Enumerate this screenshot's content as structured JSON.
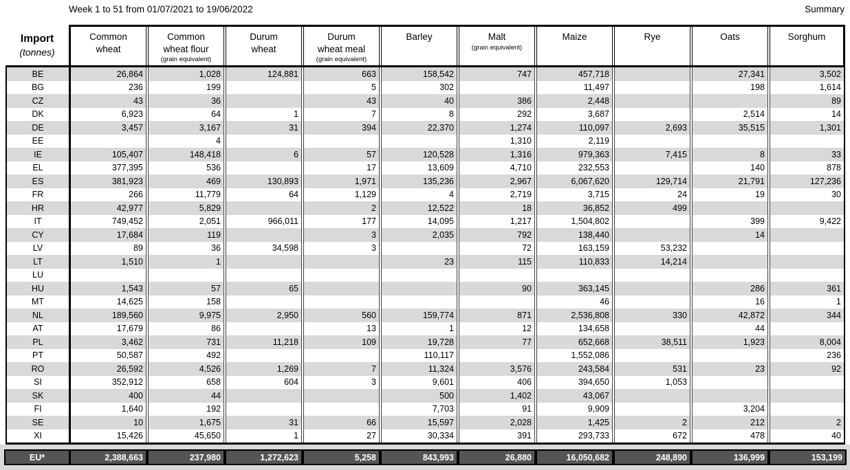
{
  "header": {
    "title": "Week 1 to 51 from 01/07/2021 to 19/06/2022",
    "summary_label": "Summary"
  },
  "table": {
    "corner_title": "Import",
    "corner_subtitle": "(tonnes)",
    "columns": [
      {
        "label": "Common\nwheat",
        "sub": ""
      },
      {
        "label": "Common\nwheat flour",
        "sub": "(grain equivalent)"
      },
      {
        "label": "Durum\nwheat",
        "sub": ""
      },
      {
        "label": "Durum\nwheat meal",
        "sub": "(grain equivalent)"
      },
      {
        "label": "Barley",
        "sub": ""
      },
      {
        "label": "Malt",
        "sub": "(grain equivalent)"
      },
      {
        "label": "Maize",
        "sub": ""
      },
      {
        "label": "Rye",
        "sub": ""
      },
      {
        "label": "Oats",
        "sub": ""
      },
      {
        "label": "Sorghum",
        "sub": ""
      }
    ],
    "rows": [
      {
        "code": "BE",
        "values": [
          "26,864",
          "1,028",
          "124,881",
          "663",
          "158,542",
          "747",
          "457,718",
          "",
          "27,341",
          "3,502"
        ]
      },
      {
        "code": "BG",
        "values": [
          "236",
          "199",
          "",
          "5",
          "302",
          "",
          "11,497",
          "",
          "198",
          "1,614"
        ]
      },
      {
        "code": "CZ",
        "values": [
          "43",
          "36",
          "",
          "43",
          "40",
          "386",
          "2,448",
          "",
          "",
          "89"
        ]
      },
      {
        "code": "DK",
        "values": [
          "6,923",
          "64",
          "1",
          "7",
          "8",
          "292",
          "3,687",
          "",
          "2,514",
          "14"
        ]
      },
      {
        "code": "DE",
        "values": [
          "3,457",
          "3,167",
          "31",
          "394",
          "22,370",
          "1,274",
          "110,097",
          "2,693",
          "35,515",
          "1,301"
        ]
      },
      {
        "code": "EE",
        "values": [
          "",
          "4",
          "",
          "",
          "",
          "1,310",
          "2,119",
          "",
          "",
          ""
        ]
      },
      {
        "code": "IE",
        "values": [
          "105,407",
          "148,418",
          "6",
          "57",
          "120,528",
          "1,316",
          "979,363",
          "7,415",
          "8",
          "33"
        ]
      },
      {
        "code": "EL",
        "values": [
          "377,395",
          "536",
          "",
          "17",
          "13,609",
          "4,710",
          "232,553",
          "",
          "140",
          "878"
        ]
      },
      {
        "code": "ES",
        "values": [
          "381,923",
          "469",
          "130,893",
          "1,971",
          "135,236",
          "2,967",
          "6,067,620",
          "129,714",
          "21,791",
          "127,236"
        ]
      },
      {
        "code": "FR",
        "values": [
          "266",
          "11,779",
          "64",
          "1,129",
          "4",
          "2,719",
          "3,715",
          "24",
          "19",
          "30"
        ]
      },
      {
        "code": "HR",
        "values": [
          "42,977",
          "5,829",
          "",
          "2",
          "12,522",
          "18",
          "36,852",
          "499",
          "",
          ""
        ]
      },
      {
        "code": "IT",
        "values": [
          "749,452",
          "2,051",
          "966,011",
          "177",
          "14,095",
          "1,217",
          "1,504,802",
          "",
          "399",
          "9,422"
        ]
      },
      {
        "code": "CY",
        "values": [
          "17,684",
          "119",
          "",
          "3",
          "2,035",
          "792",
          "138,440",
          "",
          "14",
          ""
        ]
      },
      {
        "code": "LV",
        "values": [
          "89",
          "36",
          "34,598",
          "3",
          "",
          "72",
          "163,159",
          "53,232",
          "",
          ""
        ]
      },
      {
        "code": "LT",
        "values": [
          "1,510",
          "1",
          "",
          "",
          "23",
          "115",
          "110,833",
          "14,214",
          "",
          ""
        ]
      },
      {
        "code": "LU",
        "values": [
          "",
          "",
          "",
          "",
          "",
          "",
          "",
          "",
          "",
          ""
        ]
      },
      {
        "code": "HU",
        "values": [
          "1,543",
          "57",
          "65",
          "",
          "",
          "90",
          "363,145",
          "",
          "286",
          "361"
        ]
      },
      {
        "code": "MT",
        "values": [
          "14,625",
          "158",
          "",
          "",
          "",
          "",
          "46",
          "",
          "16",
          "1"
        ]
      },
      {
        "code": "NL",
        "values": [
          "189,560",
          "9,975",
          "2,950",
          "560",
          "159,774",
          "871",
          "2,536,808",
          "330",
          "42,872",
          "344"
        ]
      },
      {
        "code": "AT",
        "values": [
          "17,679",
          "86",
          "",
          "13",
          "1",
          "12",
          "134,658",
          "",
          "44",
          ""
        ]
      },
      {
        "code": "PL",
        "values": [
          "3,462",
          "731",
          "11,218",
          "109",
          "19,728",
          "77",
          "652,668",
          "38,511",
          "1,923",
          "8,004"
        ]
      },
      {
        "code": "PT",
        "values": [
          "50,587",
          "492",
          "",
          "",
          "110,117",
          "",
          "1,552,086",
          "",
          "",
          "236"
        ]
      },
      {
        "code": "RO",
        "values": [
          "26,592",
          "4,526",
          "1,269",
          "7",
          "11,324",
          "3,576",
          "243,584",
          "531",
          "23",
          "92"
        ]
      },
      {
        "code": "SI",
        "values": [
          "352,912",
          "658",
          "604",
          "3",
          "9,601",
          "406",
          "394,650",
          "1,053",
          "",
          ""
        ]
      },
      {
        "code": "SK",
        "values": [
          "400",
          "44",
          "",
          "",
          "500",
          "1,402",
          "43,067",
          "",
          "",
          ""
        ]
      },
      {
        "code": "FI",
        "values": [
          "1,640",
          "192",
          "",
          "",
          "7,703",
          "91",
          "9,909",
          "",
          "3,204",
          ""
        ]
      },
      {
        "code": "SE",
        "values": [
          "10",
          "1,675",
          "31",
          "66",
          "15,597",
          "2,028",
          "1,425",
          "2",
          "212",
          "2"
        ]
      },
      {
        "code": "XI",
        "values": [
          "15,426",
          "45,650",
          "1",
          "27",
          "30,334",
          "391",
          "293,733",
          "672",
          "478",
          "40"
        ]
      }
    ],
    "total": {
      "code": "EU*",
      "values": [
        "2,388,663",
        "237,980",
        "1,272,623",
        "5,258",
        "843,993",
        "26,880",
        "16,050,682",
        "248,890",
        "136,999",
        "153,199"
      ]
    }
  },
  "colors": {
    "row_stripe": "#d9d9d9",
    "footer_band": "#d9d9d9",
    "total_row_bg": "#555555",
    "total_row_text": "#ffffff"
  }
}
